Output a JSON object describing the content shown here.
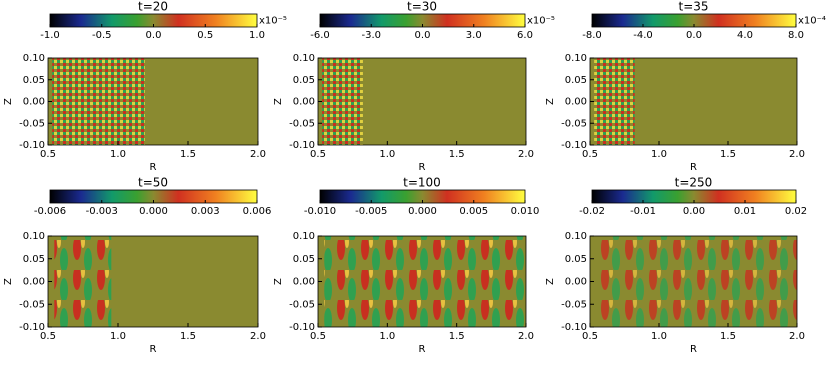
{
  "chart_data": [
    {
      "type": "heatmap",
      "title": "t=20",
      "xlabel": "R",
      "ylabel": "Z",
      "xlim": [
        0.5,
        2.0
      ],
      "xticks": [
        {
          "value": 0.5,
          "label": "0.5"
        },
        {
          "value": 1,
          "label": "1.0"
        },
        {
          "value": 1.5,
          "label": "1.5"
        },
        {
          "value": 2,
          "label": "2.0"
        }
      ],
      "ylim": [
        -0.1,
        0.1
      ],
      "yticks": [
        {
          "value": 0.1,
          "label": "0.10"
        },
        {
          "value": 0.05,
          "label": "0.05"
        },
        {
          "value": 0,
          "label": "0.00"
        },
        {
          "value": -0.05,
          "label": "-0.05"
        },
        {
          "value": -0.1,
          "label": "-0.10"
        }
      ],
      "colorbar_lim": [
        -1,
        1
      ],
      "colorbar_ticks": [
        {
          "value": -1,
          "label": "-1.0"
        },
        {
          "value": -0.5,
          "label": "-0.5"
        },
        {
          "value": 0,
          "label": "0.0"
        },
        {
          "value": 0.5,
          "label": "0.5"
        },
        {
          "value": 1,
          "label": "1.0"
        }
      ],
      "colorbar_unit": "x10⁻⁵"
    },
    {
      "type": "heatmap",
      "title": "t=30",
      "xlabel": "R",
      "ylabel": "Z",
      "xlim": [
        0.5,
        2.0
      ],
      "xticks": [
        {
          "value": 0.5,
          "label": "0.5"
        },
        {
          "value": 1,
          "label": "1.0"
        },
        {
          "value": 1.5,
          "label": "1.5"
        },
        {
          "value": 2,
          "label": "2.0"
        }
      ],
      "ylim": [
        -0.1,
        0.1
      ],
      "yticks": [
        {
          "value": 0.1,
          "label": "0.10"
        },
        {
          "value": 0.05,
          "label": "0.05"
        },
        {
          "value": 0,
          "label": "0.00"
        },
        {
          "value": -0.05,
          "label": "-0.05"
        },
        {
          "value": -0.1,
          "label": "-0.10"
        }
      ],
      "colorbar_lim": [
        -6,
        6
      ],
      "colorbar_ticks": [
        {
          "value": -6,
          "label": "-6.0"
        },
        {
          "value": -3,
          "label": "-3.0"
        },
        {
          "value": 0,
          "label": "0.0"
        },
        {
          "value": 3,
          "label": "3.0"
        },
        {
          "value": 6,
          "label": "6.0"
        }
      ],
      "colorbar_unit": "x10⁻⁵"
    },
    {
      "type": "heatmap",
      "title": "t=35",
      "xlabel": "R",
      "ylabel": "Z",
      "xlim": [
        0.5,
        2.0
      ],
      "xticks": [
        {
          "value": 0.5,
          "label": "0.5"
        },
        {
          "value": 1,
          "label": "1.0"
        },
        {
          "value": 1.5,
          "label": "1.5"
        },
        {
          "value": 2,
          "label": "2.0"
        }
      ],
      "ylim": [
        -0.1,
        0.1
      ],
      "yticks": [
        {
          "value": 0.1,
          "label": "0.10"
        },
        {
          "value": 0.05,
          "label": "0.05"
        },
        {
          "value": 0,
          "label": "0.00"
        },
        {
          "value": -0.05,
          "label": "-0.05"
        },
        {
          "value": -0.1,
          "label": "-0.10"
        }
      ],
      "colorbar_lim": [
        -8,
        8
      ],
      "colorbar_ticks": [
        {
          "value": -8,
          "label": "-8.0"
        },
        {
          "value": -4,
          "label": "-4.0"
        },
        {
          "value": 0,
          "label": "0.0"
        },
        {
          "value": 4,
          "label": "4.0"
        },
        {
          "value": 8,
          "label": "8.0"
        }
      ],
      "colorbar_unit": "x10⁻⁴"
    },
    {
      "type": "heatmap",
      "title": "t=50",
      "xlabel": "R",
      "ylabel": "Z",
      "xlim": [
        0.5,
        2.0
      ],
      "xticks": [
        {
          "value": 0.5,
          "label": "0.5"
        },
        {
          "value": 1,
          "label": "1.0"
        },
        {
          "value": 1.5,
          "label": "1.5"
        },
        {
          "value": 2,
          "label": "2.0"
        }
      ],
      "ylim": [
        -0.1,
        0.1
      ],
      "yticks": [
        {
          "value": 0.1,
          "label": "0.10"
        },
        {
          "value": 0.05,
          "label": "0.05"
        },
        {
          "value": 0,
          "label": "0.00"
        },
        {
          "value": -0.05,
          "label": "-0.05"
        },
        {
          "value": -0.1,
          "label": "-0.10"
        }
      ],
      "colorbar_lim": [
        -0.006,
        0.006
      ],
      "colorbar_ticks": [
        {
          "value": -0.006,
          "label": "-0.006"
        },
        {
          "value": -0.003,
          "label": "-0.003"
        },
        {
          "value": 0,
          "label": "0.000"
        },
        {
          "value": 0.003,
          "label": "0.003"
        },
        {
          "value": 0.006,
          "label": "0.006"
        }
      ]
    },
    {
      "type": "heatmap",
      "title": "t=100",
      "xlabel": "R",
      "ylabel": "Z",
      "xlim": [
        0.5,
        2.0
      ],
      "xticks": [
        {
          "value": 0.5,
          "label": "0.5"
        },
        {
          "value": 1,
          "label": "1.0"
        },
        {
          "value": 1.5,
          "label": "1.5"
        },
        {
          "value": 2,
          "label": "2.0"
        }
      ],
      "ylim": [
        -0.1,
        0.1
      ],
      "yticks": [
        {
          "value": 0.1,
          "label": "0.10"
        },
        {
          "value": 0.05,
          "label": "0.05"
        },
        {
          "value": 0,
          "label": "0.00"
        },
        {
          "value": -0.05,
          "label": "-0.05"
        },
        {
          "value": -0.1,
          "label": "-0.10"
        }
      ],
      "colorbar_lim": [
        -0.01,
        0.01
      ],
      "colorbar_ticks": [
        {
          "value": -0.01,
          "label": "-0.010"
        },
        {
          "value": -0.005,
          "label": "-0.005"
        },
        {
          "value": 0,
          "label": "0.000"
        },
        {
          "value": 0.005,
          "label": "0.005"
        },
        {
          "value": 0.01,
          "label": "0.010"
        }
      ]
    },
    {
      "type": "heatmap",
      "title": "t=250",
      "xlabel": "R",
      "ylabel": "Z",
      "xlim": [
        0.5,
        2.0
      ],
      "xticks": [
        {
          "value": 0.5,
          "label": "0.5"
        },
        {
          "value": 1,
          "label": "1.0"
        },
        {
          "value": 1.5,
          "label": "1.5"
        },
        {
          "value": 2,
          "label": "2.0"
        }
      ],
      "ylim": [
        -0.1,
        0.1
      ],
      "yticks": [
        {
          "value": 0.1,
          "label": "0.10"
        },
        {
          "value": 0.05,
          "label": "0.05"
        },
        {
          "value": 0,
          "label": "0.00"
        },
        {
          "value": -0.05,
          "label": "-0.05"
        },
        {
          "value": -0.1,
          "label": "-0.10"
        }
      ],
      "colorbar_lim": [
        -0.02,
        0.02
      ],
      "colorbar_ticks": [
        {
          "value": -0.02,
          "label": "-0.02"
        },
        {
          "value": -0.01,
          "label": "-0.01"
        },
        {
          "value": 0,
          "label": "0.00"
        },
        {
          "value": 0.01,
          "label": "0.01"
        },
        {
          "value": 0.02,
          "label": "0.02"
        }
      ]
    }
  ]
}
